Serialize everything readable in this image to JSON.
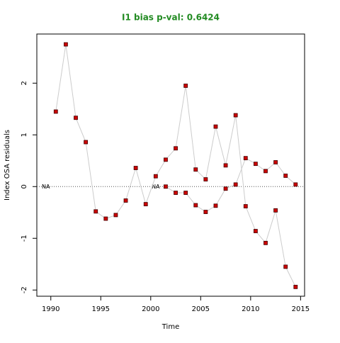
{
  "chart_data": {
    "type": "line",
    "title": "I1 bias p-val: 0.6424",
    "title_color": "#228b22",
    "x_label": "Time",
    "y_label": "Index OSA residuals",
    "xlim": [
      1988.6,
      2015.4
    ],
    "ylim": [
      -2.12,
      2.95
    ],
    "xticks": [
      1990,
      1995,
      2000,
      2005,
      2010,
      2015
    ],
    "yticks": [
      -2,
      -1,
      0,
      1,
      2
    ],
    "line_color": "#cccccc",
    "marker_color": "#cc0000",
    "zero_line": 0,
    "series": [
      {
        "x": [
          1990.5,
          1991.5,
          1992.5,
          1993.5,
          1994.5,
          1995.5,
          1996.5,
          1997.5,
          1998.5,
          1999.5,
          2000.5,
          2001.5,
          2002.5,
          2003.5,
          2004.5,
          2005.5,
          2006.5,
          2007.5,
          2008.5,
          2009.5,
          2010.5,
          2011.5,
          2012.5,
          2013.5,
          2014.5
        ],
        "values": [
          1.45,
          2.75,
          1.33,
          0.86,
          -0.48,
          -0.62,
          -0.55,
          -0.27,
          0.36,
          -0.34,
          0.2,
          0.52,
          0.74,
          1.95,
          0.33,
          0.14,
          1.16,
          0.41,
          1.38,
          -0.38,
          -0.86,
          -1.09,
          -0.46,
          -1.55,
          -1.94
        ]
      },
      {
        "x": [
          2001.5,
          2002.5,
          2003.5,
          2004.5,
          2005.5,
          2006.5,
          2007.5,
          2008.5,
          2009.5,
          2010.5,
          2011.5,
          2012.5,
          2013.5,
          2014.5
        ],
        "values": [
          0,
          -0.12,
          -0.12,
          -0.36,
          -0.49,
          -0.37,
          -0.04,
          0.04,
          0.55,
          0.44,
          0.3,
          0.47,
          0.21,
          0.04
        ]
      }
    ],
    "annotations": [
      {
        "text": "NA",
        "x": 1989.5,
        "y": 0
      },
      {
        "text": "NA",
        "x": 2000.5,
        "y": 0
      }
    ]
  }
}
